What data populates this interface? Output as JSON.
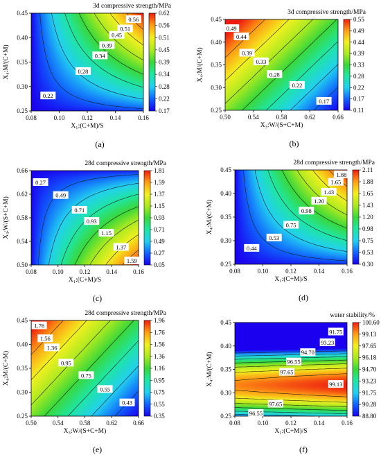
{
  "chart_data": [
    {
      "type": "contour",
      "caption": "(a)",
      "title": "3d compressive strength/MPa",
      "xlabel": "X₁:(C+M)/S",
      "ylabel": "X₄:M/(C+M)",
      "xlim": [
        0.08,
        0.16
      ],
      "ylim": [
        0.25,
        0.45
      ],
      "xticks": [
        "0.08",
        "0.10",
        "0.12",
        "0.14",
        "0.16"
      ],
      "yticks": [
        "0.25",
        "0.30",
        "0.35",
        "0.40",
        "0.45"
      ],
      "colorbar_ticks": [
        "0.17",
        "0.22",
        "0.28",
        "0.34",
        "0.39",
        "0.45",
        "0.51",
        "0.56",
        "0.62"
      ],
      "colorbar_range": [
        0.17,
        0.62
      ],
      "contour_labels": [
        {
          "text": "0.22",
          "x": 0.092,
          "y": 0.281
        },
        {
          "text": "0.28",
          "x": 0.117,
          "y": 0.331
        },
        {
          "text": "0.34",
          "x": 0.129,
          "y": 0.363
        },
        {
          "text": "0.39",
          "x": 0.134,
          "y": 0.384
        },
        {
          "text": "0.45",
          "x": 0.141,
          "y": 0.405
        },
        {
          "text": "0.51",
          "x": 0.147,
          "y": 0.418
        },
        {
          "text": "0.56",
          "x": 0.153,
          "y": 0.437
        }
      ]
    },
    {
      "type": "contour",
      "caption": "(b)",
      "title": "3d compressive strength/MPa",
      "xlabel": "X₃:W/(S+C+M)",
      "ylabel": "X₄:M/(C+M)",
      "xlim": [
        0.5,
        0.66
      ],
      "ylim": [
        0.25,
        0.45
      ],
      "xticks": [
        "0.50",
        "0.54",
        "0.58",
        "0.62",
        "0.66"
      ],
      "yticks": [
        "0.25",
        "0.30",
        "0.35",
        "0.40",
        "0.45"
      ],
      "colorbar_ticks": [
        "0.11",
        "0.17",
        "0.22",
        "0.28",
        "0.33",
        "0.39",
        "0.44",
        "0.49",
        "0.55"
      ],
      "colorbar_range": [
        0.11,
        0.55
      ],
      "contour_labels": [
        {
          "text": "0.49",
          "x": 0.509,
          "y": 0.43
        },
        {
          "text": "0.44",
          "x": 0.523,
          "y": 0.412
        },
        {
          "text": "0.39",
          "x": 0.531,
          "y": 0.376
        },
        {
          "text": "0.33",
          "x": 0.551,
          "y": 0.357
        },
        {
          "text": "0.28",
          "x": 0.57,
          "y": 0.329
        },
        {
          "text": "0.22",
          "x": 0.602,
          "y": 0.305
        },
        {
          "text": "0.17",
          "x": 0.64,
          "y": 0.27
        }
      ]
    },
    {
      "type": "contour",
      "caption": "(c)",
      "title": "28d compressive strength/MPa",
      "xlabel": "X₁:(C+M)/S",
      "ylabel": "X₃:W/(S+C+M)",
      "xlim": [
        0.08,
        0.16
      ],
      "ylim": [
        0.5,
        0.66
      ],
      "xticks": [
        "0.08",
        "0.10",
        "0.12",
        "0.14",
        "0.16"
      ],
      "yticks": [
        "0.50",
        "0.54",
        "0.58",
        "0.62",
        "0.66"
      ],
      "colorbar_ticks": [
        "0.05",
        "0.27",
        "0.49",
        "0.71",
        "0.93",
        "1.15",
        "1.37",
        "1.59",
        "1.81"
      ],
      "colorbar_range": [
        0.05,
        1.81
      ],
      "contour_labels": [
        {
          "text": "0.27",
          "x": 0.087,
          "y": 0.64
        },
        {
          "text": "0.49",
          "x": 0.102,
          "y": 0.618
        },
        {
          "text": "0.71",
          "x": 0.116,
          "y": 0.593
        },
        {
          "text": "0.93",
          "x": 0.125,
          "y": 0.574
        },
        {
          "text": "1.15",
          "x": 0.136,
          "y": 0.554
        },
        {
          "text": "1.37",
          "x": 0.147,
          "y": 0.53
        },
        {
          "text": "1.59",
          "x": 0.155,
          "y": 0.507
        }
      ]
    },
    {
      "type": "contour",
      "caption": "(d)",
      "title": "28d compressive strength/MPa",
      "xlabel": "X₁:(C+M)/S",
      "ylabel": "X₄:M/(C+M)",
      "xlim": [
        0.08,
        0.16
      ],
      "ylim": [
        0.25,
        0.45
      ],
      "xticks": [
        "0.08",
        "0.10",
        "0.12",
        "0.14",
        "0.16"
      ],
      "yticks": [
        "0.25",
        "0.30",
        "0.35",
        "0.40",
        "0.45"
      ],
      "colorbar_ticks": [
        "0.30",
        "0.53",
        "0.75",
        "0.98",
        "1.20",
        "1.43",
        "1.65",
        "1.88",
        "2.11"
      ],
      "colorbar_range": [
        0.3,
        2.11
      ],
      "contour_labels": [
        {
          "text": "0.44",
          "x": 0.092,
          "y": 0.284
        },
        {
          "text": "0.53",
          "x": 0.108,
          "y": 0.306
        },
        {
          "text": "0.75",
          "x": 0.12,
          "y": 0.333
        },
        {
          "text": "0.98",
          "x": 0.131,
          "y": 0.363
        },
        {
          "text": "1.20",
          "x": 0.14,
          "y": 0.384
        },
        {
          "text": "1.43",
          "x": 0.147,
          "y": 0.403
        },
        {
          "text": "1.65",
          "x": 0.152,
          "y": 0.424
        },
        {
          "text": "1.88",
          "x": 0.156,
          "y": 0.44
        }
      ]
    },
    {
      "type": "contour",
      "caption": "(e)",
      "title": "28d compressive strength/MPa",
      "xlabel": "X₃:W/(S+C+M)",
      "ylabel": "X₄:M/(C+M)",
      "xlim": [
        0.5,
        0.66
      ],
      "ylim": [
        0.25,
        0.45
      ],
      "xticks": [
        "0.50",
        "0.54",
        "0.58",
        "0.62",
        "0.66"
      ],
      "yticks": [
        "0.25",
        "0.30",
        "0.35",
        "0.40",
        "0.45"
      ],
      "colorbar_ticks": [
        "0.35",
        "0.55",
        "0.75",
        "0.95",
        "1.16",
        "1.36",
        "1.56",
        "1.76",
        "1.96"
      ],
      "colorbar_range": [
        0.35,
        1.96
      ],
      "contour_labels": [
        {
          "text": "1.76",
          "x": 0.512,
          "y": 0.439
        },
        {
          "text": "1.56",
          "x": 0.521,
          "y": 0.412
        },
        {
          "text": "1.36",
          "x": 0.531,
          "y": 0.393
        },
        {
          "text": "0.95",
          "x": 0.552,
          "y": 0.361
        },
        {
          "text": "0.75",
          "x": 0.582,
          "y": 0.335
        },
        {
          "text": "0.55",
          "x": 0.61,
          "y": 0.306
        },
        {
          "text": "0.43",
          "x": 0.643,
          "y": 0.278
        }
      ]
    },
    {
      "type": "contour",
      "caption": "(f)",
      "title": "water stability/%",
      "xlabel": "X₁:(C+M)/S",
      "ylabel": "X₄:M/(C+M)",
      "xlim": [
        0.08,
        0.16
      ],
      "ylim": [
        0.25,
        0.45
      ],
      "xticks": [
        "0.08",
        "0.10",
        "0.12",
        "0.14",
        "0.16"
      ],
      "yticks": [
        "0.25",
        "0.30",
        "0.35",
        "0.40",
        "0.45"
      ],
      "colorbar_ticks": [
        "88.80",
        "90.28",
        "91.75",
        "93.23",
        "94.70",
        "96.18",
        "97.65",
        "99.13",
        "100.60"
      ],
      "colorbar_range": [
        88.8,
        100.6
      ],
      "contour_labels": [
        {
          "text": "91.75",
          "x": 0.152,
          "y": 0.43
        },
        {
          "text": "93.23",
          "x": 0.146,
          "y": 0.407
        },
        {
          "text": "94.70",
          "x": 0.132,
          "y": 0.386
        },
        {
          "text": "96.55",
          "x": 0.122,
          "y": 0.366
        },
        {
          "text": "97.65",
          "x": 0.117,
          "y": 0.344
        },
        {
          "text": "99.13",
          "x": 0.152,
          "y": 0.318
        },
        {
          "text": "97.65",
          "x": 0.109,
          "y": 0.276
        },
        {
          "text": "96.55",
          "x": 0.095,
          "y": 0.256
        }
      ]
    }
  ]
}
